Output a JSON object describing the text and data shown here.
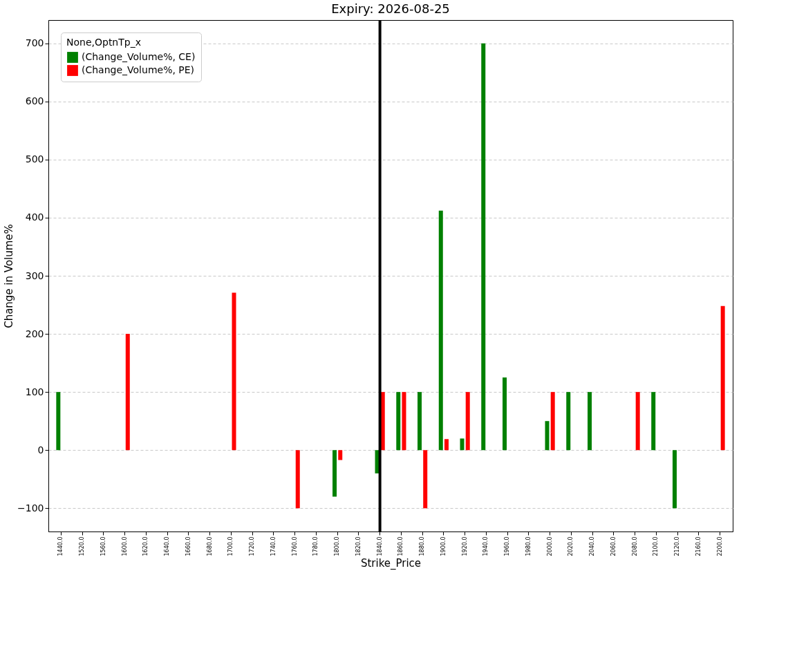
{
  "chart_data": {
    "type": "bar",
    "title": "Expiry: 2026-08-25",
    "xlabel": "Strike_Price",
    "ylabel": "Change in Volume%",
    "legend_title": "None,OptnTp_x",
    "categories": [
      "1440.0",
      "1520.0",
      "1560.0",
      "1600.0",
      "1620.0",
      "1640.0",
      "1660.0",
      "1680.0",
      "1700.0",
      "1720.0",
      "1740.0",
      "1760.0",
      "1780.0",
      "1800.0",
      "1820.0",
      "1840.0",
      "1860.0",
      "1880.0",
      "1900.0",
      "1920.0",
      "1940.0",
      "1960.0",
      "1980.0",
      "2000.0",
      "2020.0",
      "2040.0",
      "2060.0",
      "2080.0",
      "2100.0",
      "2120.0",
      "2160.0",
      "2200.0"
    ],
    "series": [
      {
        "name": "(Change_Volume%, CE)",
        "color": "#008000",
        "values": [
          100,
          null,
          null,
          null,
          null,
          null,
          null,
          null,
          null,
          null,
          null,
          null,
          null,
          -80,
          null,
          -40,
          100,
          100,
          412,
          20,
          700,
          125,
          null,
          50,
          100,
          100,
          null,
          null,
          100,
          -100,
          null,
          null
        ]
      },
      {
        "name": "(Change_Volume%, PE)",
        "color": "#ff0000",
        "values": [
          null,
          null,
          null,
          200,
          null,
          null,
          null,
          null,
          271,
          null,
          null,
          -100,
          null,
          -17,
          null,
          100,
          100,
          -100,
          19,
          100,
          null,
          null,
          null,
          100,
          null,
          null,
          null,
          100,
          null,
          null,
          null,
          248
        ]
      }
    ],
    "ylim": [
      -140,
      740
    ],
    "yticks": [
      -100,
      0,
      100,
      200,
      300,
      400,
      500,
      600,
      700
    ],
    "grid": "y",
    "legend": "top left",
    "ref_lines": [
      {
        "axis": "x",
        "value": "1840.0",
        "color": "#000000"
      }
    ]
  }
}
